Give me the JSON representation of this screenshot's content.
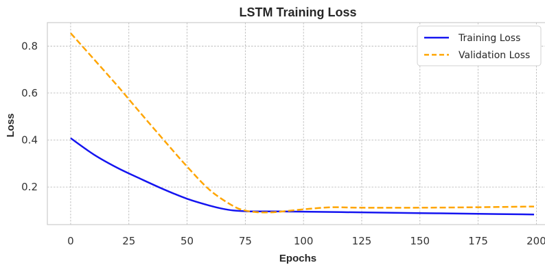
{
  "chart_data": {
    "type": "line",
    "title": "LSTM Training Loss",
    "xlabel": "Epochs",
    "ylabel": "Loss",
    "xlim": [
      -10,
      204
    ],
    "ylim": [
      0.04,
      0.9
    ],
    "xticks": [
      0,
      25,
      50,
      75,
      100,
      125,
      150,
      175,
      200
    ],
    "yticks": [
      0.2,
      0.4,
      0.6,
      0.8
    ],
    "grid": true,
    "legend_position": "top-right",
    "series": [
      {
        "name": "Training Loss",
        "color": "#1414f0",
        "style": "solid",
        "x": [
          0,
          10,
          20,
          30,
          40,
          50,
          60,
          65,
          70,
          75,
          80,
          90,
          100,
          125,
          150,
          175,
          199
        ],
        "y": [
          0.408,
          0.338,
          0.282,
          0.235,
          0.19,
          0.15,
          0.12,
          0.108,
          0.1,
          0.097,
          0.096,
          0.096,
          0.095,
          0.092,
          0.089,
          0.086,
          0.083
        ]
      },
      {
        "name": "Validation Loss",
        "color": "#ffa500",
        "style": "dashed",
        "x": [
          0,
          10,
          20,
          30,
          40,
          50,
          60,
          70,
          75,
          80,
          85,
          90,
          100,
          110,
          115,
          125,
          150,
          175,
          199
        ],
        "y": [
          0.855,
          0.744,
          0.632,
          0.515,
          0.4,
          0.287,
          0.185,
          0.118,
          0.1,
          0.093,
          0.092,
          0.095,
          0.105,
          0.113,
          0.114,
          0.112,
          0.112,
          0.114,
          0.117
        ]
      }
    ]
  }
}
